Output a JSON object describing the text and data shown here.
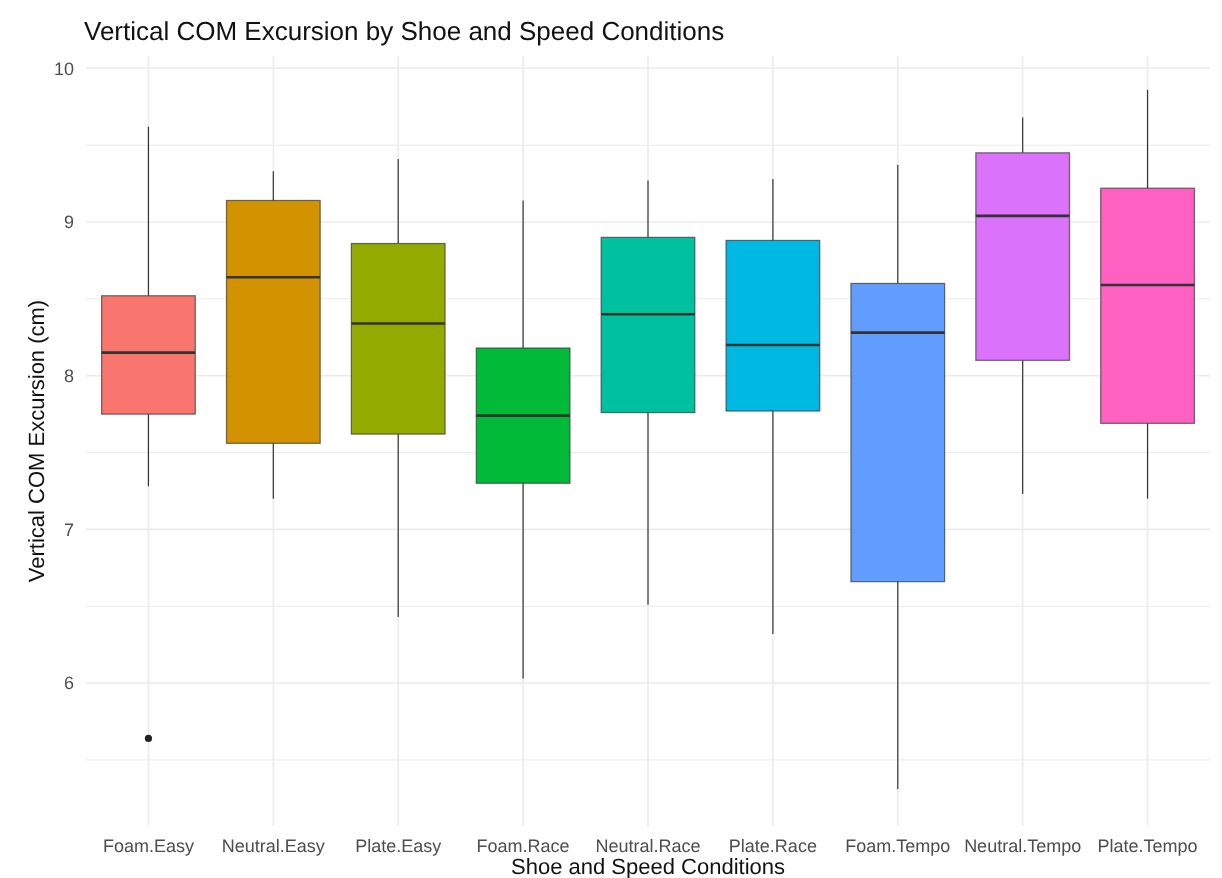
{
  "chart_data": {
    "type": "box",
    "title": "Vertical COM Excursion by Shoe and Speed Conditions",
    "xlabel": "Shoe and Speed Conditions",
    "ylabel": "Vertical COM Excursion (cm)",
    "categories": [
      "Foam.Easy",
      "Neutral.Easy",
      "Plate.Easy",
      "Foam.Race",
      "Neutral.Race",
      "Plate.Race",
      "Foam.Tempo",
      "Neutral.Tempo",
      "Plate.Tempo"
    ],
    "colors": [
      "#f8766d",
      "#d39200",
      "#93aa00",
      "#00ba38",
      "#00c19f",
      "#00b9e3",
      "#619cff",
      "#db72fb",
      "#ff61c3"
    ],
    "boxes": [
      {
        "low": 7.28,
        "q1": 7.75,
        "median": 8.15,
        "q3": 8.52,
        "high": 9.62,
        "outliers": [
          5.64
        ]
      },
      {
        "low": 7.2,
        "q1": 7.56,
        "median": 8.64,
        "q3": 9.14,
        "high": 9.33
      },
      {
        "low": 6.43,
        "q1": 7.62,
        "median": 8.34,
        "q3": 8.86,
        "high": 9.41
      },
      {
        "low": 6.03,
        "q1": 7.3,
        "median": 7.74,
        "q3": 8.18,
        "high": 9.14
      },
      {
        "low": 6.51,
        "q1": 7.76,
        "median": 8.4,
        "q3": 8.9,
        "high": 9.27
      },
      {
        "low": 6.32,
        "q1": 7.77,
        "median": 8.2,
        "q3": 8.88,
        "high": 9.28
      },
      {
        "low": 5.31,
        "q1": 6.66,
        "median": 8.28,
        "q3": 8.6,
        "high": 9.37
      },
      {
        "low": 7.23,
        "q1": 8.1,
        "median": 9.04,
        "q3": 9.45,
        "high": 9.68
      },
      {
        "low": 7.2,
        "q1": 7.69,
        "median": 8.59,
        "q3": 9.22,
        "high": 9.86
      }
    ],
    "ylim": [
      5.07,
      10.08
    ],
    "yticks": [
      {
        "value": 5.5,
        "label": null
      },
      6,
      {
        "value": 6.5,
        "label": null
      },
      7,
      {
        "value": 7.5,
        "label": null
      },
      8,
      {
        "value": 8.5,
        "label": null
      },
      9,
      {
        "value": 9.5,
        "label": null
      },
      10
    ],
    "grid": true
  }
}
